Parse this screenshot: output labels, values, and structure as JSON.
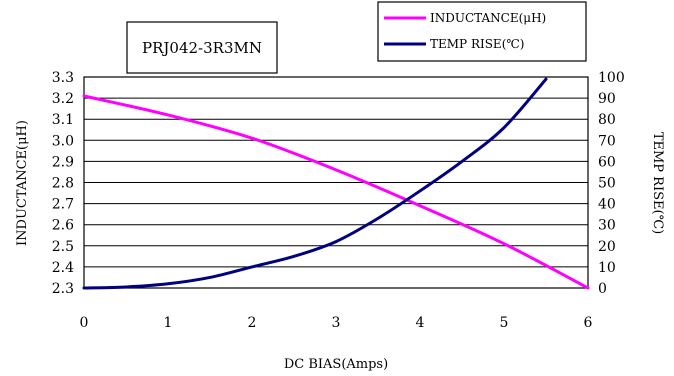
{
  "chart_data": {
    "type": "line",
    "title": "PRJ042-3R3MN",
    "xlabel": "DC BIAS(Amps)",
    "ylabel_left": "INDUCTANCE(μH)",
    "ylabel_right": "TEMP RISE(℃)",
    "xlim": [
      0,
      6
    ],
    "ylim_left": [
      2.3,
      3.3
    ],
    "ylim_right": [
      0,
      100
    ],
    "x_ticks": [
      "0",
      "1",
      "2",
      "3",
      "4",
      "5",
      "6"
    ],
    "y_left_ticks": [
      "2.3",
      "2.4",
      "2.5",
      "2.6",
      "2.7",
      "2.8",
      "2.9",
      "3.0",
      "3.1",
      "3.2",
      "3.3"
    ],
    "y_right_ticks": [
      "0",
      "10",
      "20",
      "30",
      "40",
      "50",
      "60",
      "70",
      "80",
      "90",
      "100"
    ],
    "grid": "horizontal",
    "legend_position": "top-right",
    "series": [
      {
        "name": "INDUCTANCE(μH)",
        "axis": "left",
        "color": "#ff00ff",
        "x": [
          0,
          1,
          2,
          3,
          4,
          5,
          6
        ],
        "y": [
          3.21,
          3.12,
          3.01,
          2.86,
          2.69,
          2.51,
          2.3
        ]
      },
      {
        "name": "TEMP RISE(℃)",
        "axis": "right",
        "color": "#000080",
        "x": [
          0,
          0.5,
          1,
          1.5,
          2,
          2.5,
          3,
          3.5,
          4,
          4.5,
          5,
          5.5
        ],
        "y": [
          0,
          0.5,
          2,
          5,
          10,
          15,
          22,
          33,
          46,
          60,
          76,
          99
        ]
      }
    ]
  }
}
